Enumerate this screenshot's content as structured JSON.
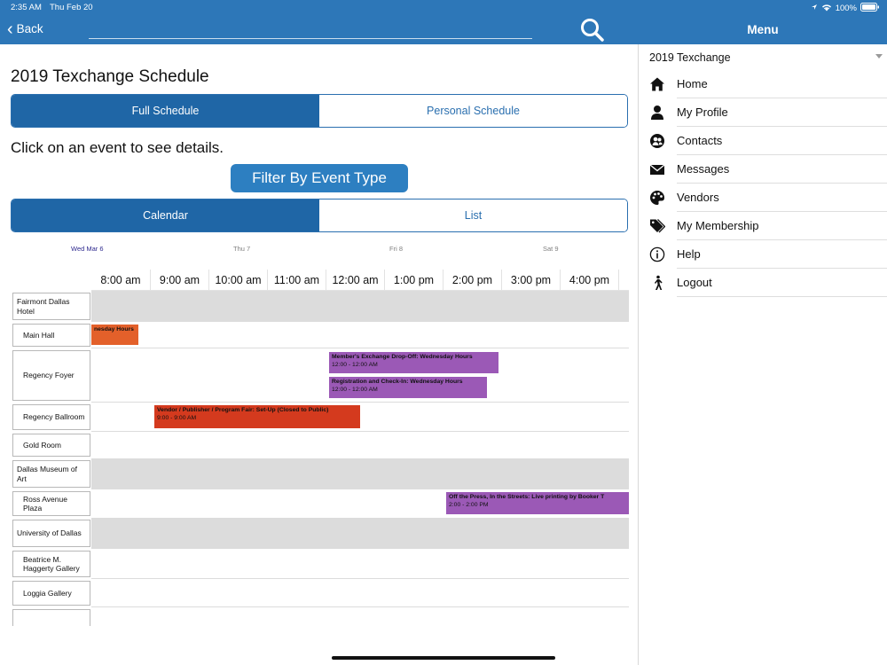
{
  "status_bar": {
    "time": "2:35 AM",
    "date": "Thu Feb 20",
    "battery": "100%"
  },
  "nav": {
    "back_label": "Back",
    "search_placeholder": ""
  },
  "page": {
    "title": "2019 Texchange Schedule",
    "schedule_tabs": [
      {
        "label": "Full Schedule",
        "selected": true
      },
      {
        "label": "Personal Schedule",
        "selected": false
      }
    ],
    "instruction": "Click on an event to see details.",
    "filter_button": "Filter By Event Type",
    "view_tabs": [
      {
        "label": "Calendar",
        "selected": true
      },
      {
        "label": "List",
        "selected": false
      }
    ]
  },
  "calendar": {
    "days": [
      {
        "label": "Wed Mar 6",
        "selected": true
      },
      {
        "label": "Thu 7"
      },
      {
        "label": "Fri 8"
      },
      {
        "label": "Sat 9"
      }
    ],
    "time_slots": [
      "8:00 am",
      "9:00 am",
      "10:00 am",
      "11:00 am",
      "12:00 am",
      "1:00 pm",
      "2:00 pm",
      "3:00 pm",
      "4:00 pm"
    ],
    "locations": [
      {
        "name": "Fairmont Dallas Hotel",
        "shaded": true
      },
      {
        "name": "Main Hall",
        "shaded": false
      },
      {
        "name": "Regency Foyer",
        "shaded": false
      },
      {
        "name": "Regency Ballroom",
        "shaded": false
      },
      {
        "name": "Gold Room",
        "shaded": false
      },
      {
        "name": "Dallas Museum of Art",
        "shaded": true
      },
      {
        "name": "Ross Avenue Plaza",
        "shaded": false
      },
      {
        "name": "University of Dallas",
        "shaded": true
      },
      {
        "name": "Beatrice M. Haggerty Gallery",
        "shaded": false
      },
      {
        "name": "Loggia Gallery",
        "shaded": false
      },
      {
        "name": "",
        "shaded": false
      }
    ],
    "events": [
      {
        "title": "nesday Hours",
        "time": "",
        "location": "Main Hall",
        "color": "#e3602a"
      },
      {
        "title": "Member's Exchange Drop-Off: Wednesday Hours",
        "time": "12:00 - 12:00 AM",
        "location": "Regency Foyer",
        "color": "#9b59b6"
      },
      {
        "title": "Registration and Check-In: Wednesday Hours",
        "time": "12:00 - 12:00 AM",
        "location": "Regency Foyer",
        "color": "#9b59b6"
      },
      {
        "title": "Vendor / Publisher / Program Fair: Set-Up (Closed to Public)",
        "time": "9:00 - 9:00 AM",
        "location": "Regency Ballroom",
        "color": "#d43a1e"
      },
      {
        "title": "Off the Press, In the Streets: Live printing by Booker T",
        "time": "2:00 - 2:00 PM",
        "location": "Ross Avenue Plaza",
        "color": "#9b59b6"
      }
    ]
  },
  "menu": {
    "title": "Menu",
    "conference": "2019 Texchange",
    "items": [
      {
        "label": "Home",
        "icon": "home-icon"
      },
      {
        "label": "My Profile",
        "icon": "person-icon"
      },
      {
        "label": "Contacts",
        "icon": "contacts-icon"
      },
      {
        "label": "Messages",
        "icon": "envelope-icon"
      },
      {
        "label": "Vendors",
        "icon": "palette-icon"
      },
      {
        "label": "My Membership",
        "icon": "tags-icon"
      },
      {
        "label": "Help",
        "icon": "info-icon"
      },
      {
        "label": "Logout",
        "icon": "walking-person-icon"
      }
    ]
  },
  "colors": {
    "primary": "#2d77b8",
    "segment_active": "#1f66a6",
    "event_orange": "#e3602a",
    "event_red": "#d43a1e",
    "event_purple": "#9b59b6",
    "row_shade": "#dcdcdc"
  }
}
